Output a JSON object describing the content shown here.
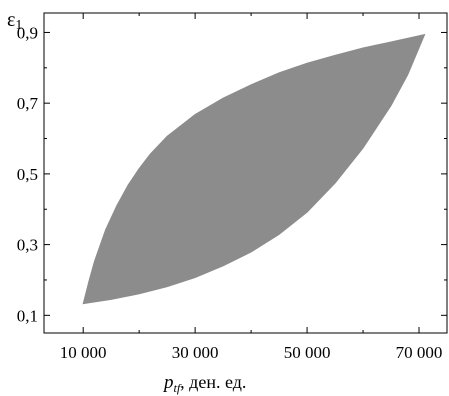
{
  "chart_data": {
    "type": "area",
    "title": "",
    "xlabel_main": "p",
    "xlabel_sub": "tf",
    "xlabel_rest": ", ден. ед.",
    "ylabel_main": "ε",
    "ylabel_sub": "1",
    "xlim": [
      3000,
      75000
    ],
    "ylim": [
      0.05,
      0.955
    ],
    "x_ticks": [
      10000,
      30000,
      50000,
      70000
    ],
    "x_tick_labels": [
      "10 000",
      "30 000",
      "50 000",
      "70 000"
    ],
    "y_ticks": [
      0.1,
      0.3,
      0.5,
      0.7,
      0.9
    ],
    "y_tick_labels": [
      "0,1",
      "0,3",
      "0,5",
      "0,7",
      "0,9"
    ],
    "fill_color": "#8c8c8c",
    "grid": false,
    "region": {
      "upper_boundary": [
        [
          10000,
          0.133
        ],
        [
          11000,
          0.195
        ],
        [
          12000,
          0.252
        ],
        [
          14000,
          0.342
        ],
        [
          16000,
          0.41
        ],
        [
          18000,
          0.468
        ],
        [
          20000,
          0.515
        ],
        [
          22000,
          0.556
        ],
        [
          25000,
          0.606
        ],
        [
          30000,
          0.668
        ],
        [
          35000,
          0.714
        ],
        [
          40000,
          0.752
        ],
        [
          45000,
          0.786
        ],
        [
          50000,
          0.813
        ],
        [
          55000,
          0.835
        ],
        [
          60000,
          0.856
        ],
        [
          65000,
          0.873
        ],
        [
          71000,
          0.894
        ]
      ],
      "lower_boundary": [
        [
          10000,
          0.133
        ],
        [
          15000,
          0.145
        ],
        [
          20000,
          0.161
        ],
        [
          25000,
          0.181
        ],
        [
          30000,
          0.207
        ],
        [
          35000,
          0.24
        ],
        [
          40000,
          0.279
        ],
        [
          45000,
          0.329
        ],
        [
          50000,
          0.392
        ],
        [
          55000,
          0.474
        ],
        [
          60000,
          0.573
        ],
        [
          65000,
          0.693
        ],
        [
          68000,
          0.781
        ],
        [
          71000,
          0.894
        ]
      ]
    }
  }
}
